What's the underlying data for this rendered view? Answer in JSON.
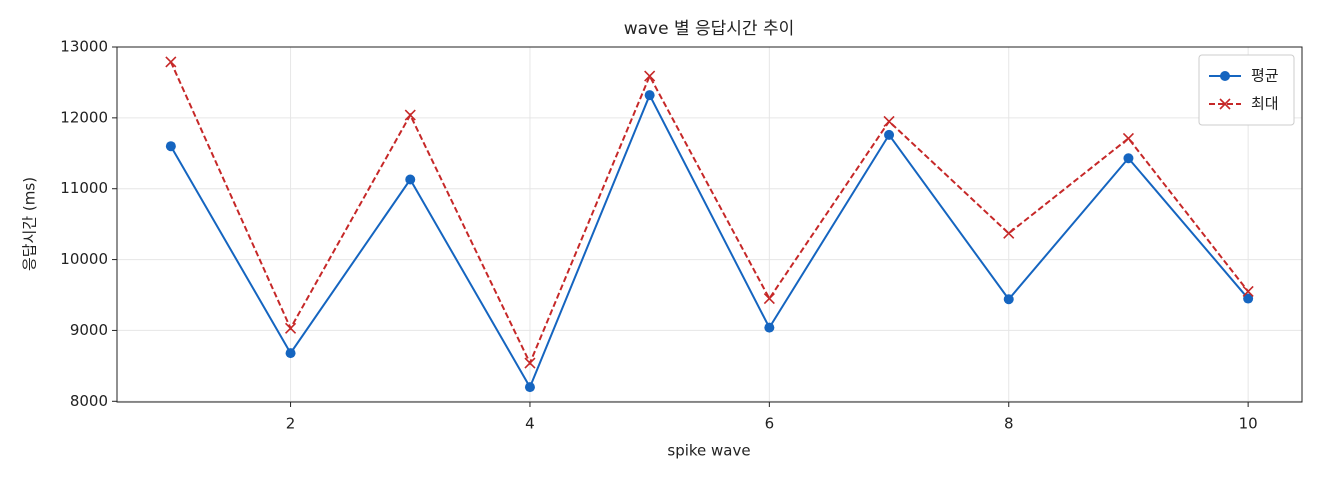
{
  "chart_data": {
    "type": "line",
    "title": "wave 별 응답시간 추이",
    "xlabel": "spike wave",
    "ylabel": "응답시간 (ms)",
    "x": [
      1,
      2,
      3,
      4,
      5,
      6,
      7,
      8,
      9,
      10
    ],
    "series": [
      {
        "name": "평균",
        "color": "#1565c0",
        "marker": "o",
        "linestyle": "solid",
        "values": [
          11600,
          8680,
          11130,
          8200,
          12320,
          9040,
          11760,
          9440,
          11430,
          9450
        ]
      },
      {
        "name": "최대",
        "color": "#c62828",
        "marker": "x",
        "linestyle": "dashed",
        "values": [
          12790,
          9030,
          12040,
          8540,
          12590,
          9450,
          11950,
          10370,
          11710,
          9550
        ]
      }
    ],
    "xlim": [
      0.55,
      10.45
    ],
    "ylim": [
      7990,
      13000
    ],
    "xticks": [
      2,
      4,
      6,
      8,
      10
    ],
    "yticks": [
      8000,
      9000,
      10000,
      11000,
      12000,
      13000
    ],
    "grid": true,
    "legend": "upper right"
  }
}
